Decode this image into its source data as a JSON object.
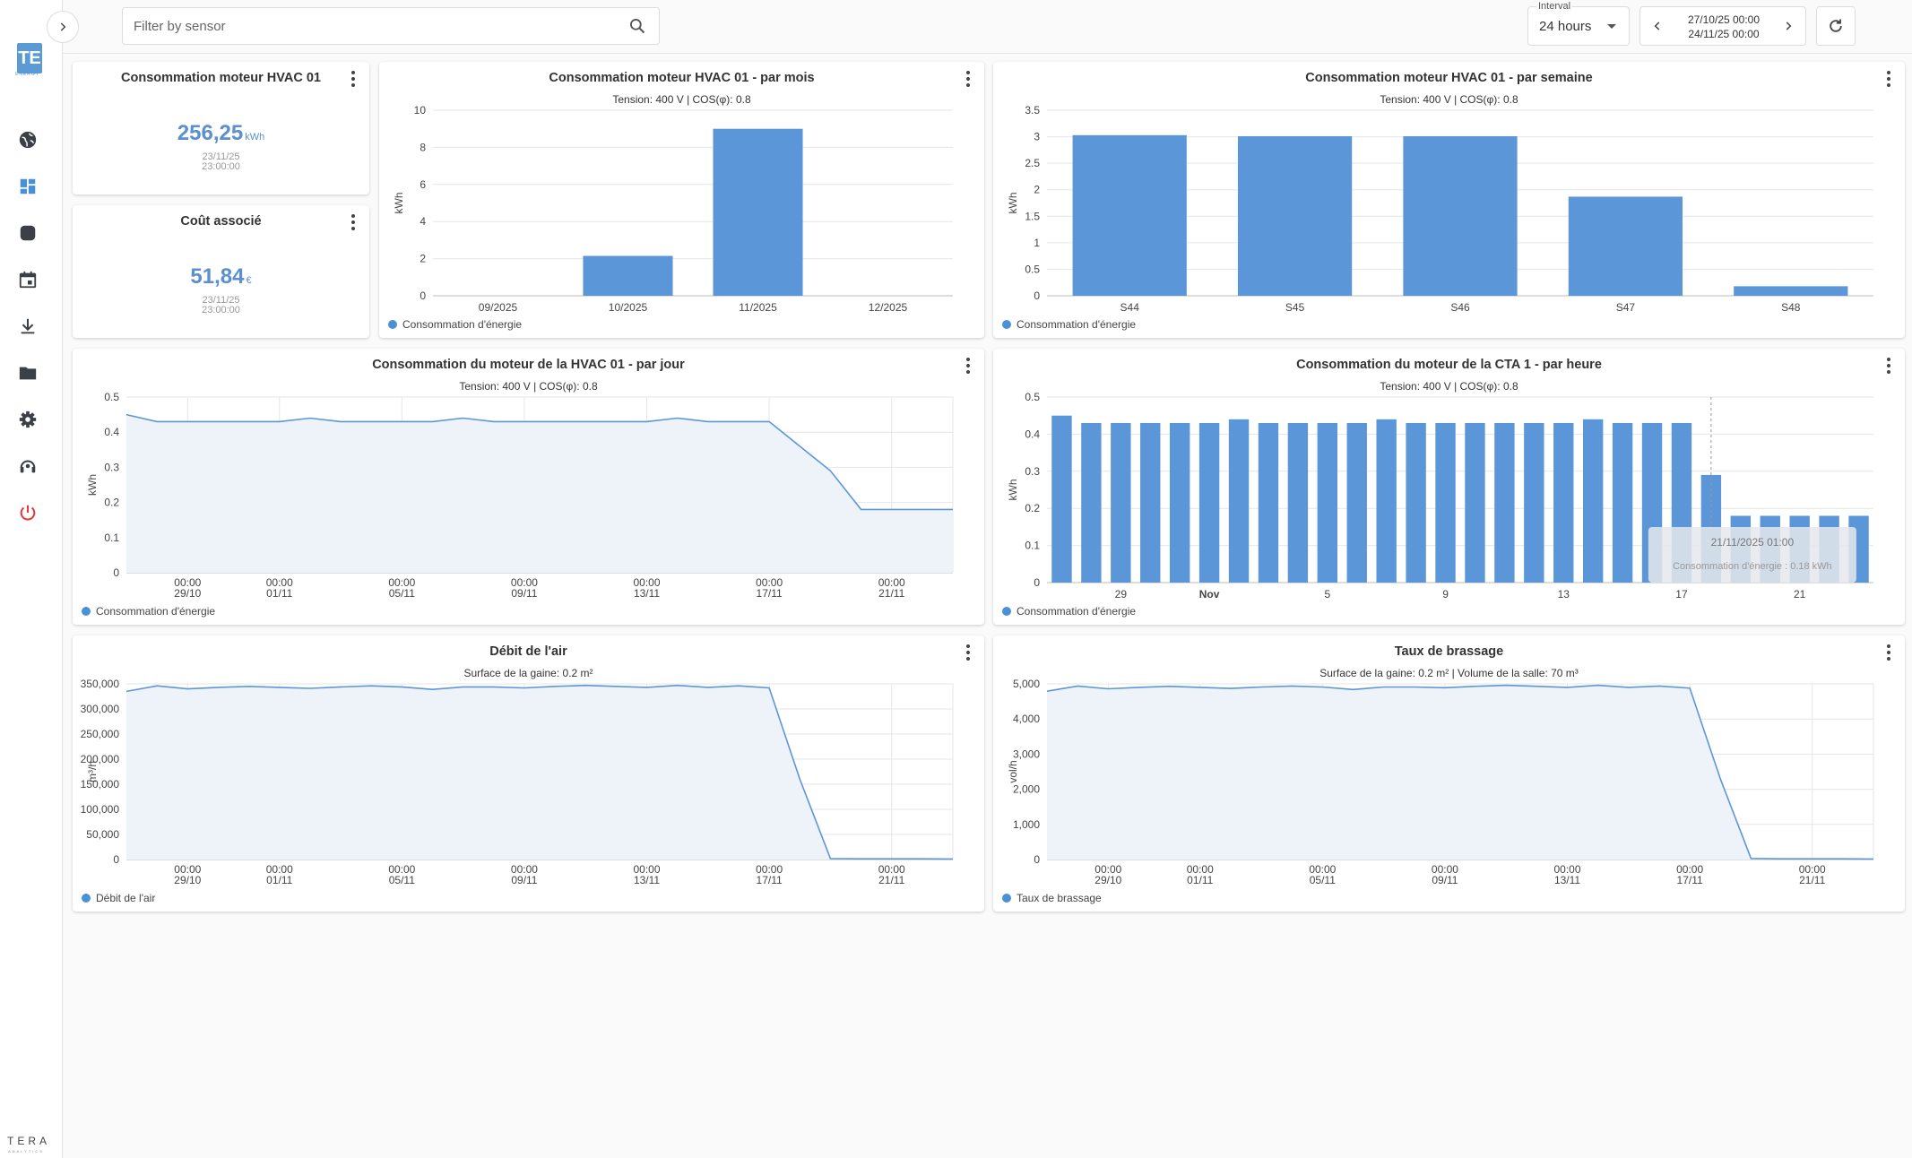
{
  "sidebar": {
    "logo_text": "TE",
    "logo_subtext": "ENERGY",
    "items": [
      {
        "name": "globe-icon"
      },
      {
        "name": "dashboard-icon"
      },
      {
        "name": "device-icon"
      },
      {
        "name": "calendar-icon"
      },
      {
        "name": "download-icon"
      },
      {
        "name": "folder-icon"
      },
      {
        "name": "settings-icon"
      },
      {
        "name": "support-icon"
      },
      {
        "name": "power-icon"
      }
    ],
    "brand": "TERA",
    "brand_sub": "ANALYTICS"
  },
  "topbar": {
    "search_placeholder": "Filter by sensor",
    "interval_label": "Interval",
    "interval_value": "24 hours",
    "range_start": "27/10/25 00:00",
    "range_end": "24/11/25 00:00"
  },
  "kpis": [
    {
      "title": "Consommation moteur HVAC 01",
      "value": "256,25",
      "unit": "kWh",
      "date": "23/11/25",
      "time": "23:00:00"
    },
    {
      "title": "Coût associé",
      "value": "51,84",
      "unit": "€",
      "date": "23/11/25",
      "time": "23:00:00"
    }
  ],
  "colors": {
    "bar": "#5b97d8",
    "line": "#5b97d8",
    "area": "#eef3fa",
    "accent": "#5b8fd0",
    "power": "#e53935"
  },
  "chart_data": [
    {
      "id": "monthly",
      "type": "bar",
      "title": "Consommation moteur HVAC 01 - par mois",
      "subtitle": "Tension: 400 V | COS(φ): 0.8",
      "ylabel": "kWh",
      "ylim": [
        0,
        10
      ],
      "yticks": [
        "0",
        "2",
        "4",
        "6",
        "8",
        "10"
      ],
      "categories": [
        "09/2025",
        "10/2025",
        "11/2025",
        "12/2025"
      ],
      "series": [
        {
          "name": "Consommation d'énergie",
          "values": [
            0,
            2.15,
            9.0,
            0
          ]
        }
      ]
    },
    {
      "id": "weekly",
      "type": "bar",
      "title": "Consommation moteur HVAC 01 - par semaine",
      "subtitle": "Tension: 400 V | COS(φ): 0.8",
      "ylabel": "kWh",
      "ylim": [
        0,
        3.5
      ],
      "yticks": [
        "0",
        "0.5",
        "1",
        "1.5",
        "2",
        "2.5",
        "3",
        "3.5"
      ],
      "categories": [
        "S44",
        "S45",
        "S46",
        "S47",
        "S48"
      ],
      "series": [
        {
          "name": "Consommation d'énergie",
          "values": [
            3.03,
            3.01,
            3.01,
            1.87,
            0.18
          ]
        }
      ]
    },
    {
      "id": "daily",
      "type": "area",
      "title": "Consommation du moteur de la HVAC 01 - par jour",
      "subtitle": "Tension: 400 V | COS(φ): 0.8",
      "ylabel": "kWh",
      "ylim": [
        0,
        0.5
      ],
      "yticks": [
        "0",
        "0.1",
        "0.2",
        "0.3",
        "0.4",
        "0.5"
      ],
      "xticks": [
        "00:00|29/10",
        "00:00|01/11",
        "00:00|05/11",
        "00:00|09/11",
        "00:00|13/11",
        "00:00|17/11",
        "00:00|21/11"
      ],
      "x": [
        "27/10",
        "28/10",
        "29/10",
        "30/10",
        "31/10",
        "01/11",
        "02/11",
        "03/11",
        "04/11",
        "05/11",
        "06/11",
        "07/11",
        "08/11",
        "09/11",
        "10/11",
        "11/11",
        "12/11",
        "13/11",
        "14/11",
        "15/11",
        "16/11",
        "17/11",
        "18/11",
        "19/11",
        "20/11",
        "21/11",
        "22/11",
        "23/11"
      ],
      "series": [
        {
          "name": "Consommation d'énergie",
          "values": [
            0.45,
            0.43,
            0.43,
            0.43,
            0.43,
            0.43,
            0.44,
            0.43,
            0.43,
            0.43,
            0.43,
            0.44,
            0.43,
            0.43,
            0.43,
            0.43,
            0.43,
            0.43,
            0.44,
            0.43,
            0.43,
            0.43,
            0.36,
            0.29,
            0.18,
            0.18,
            0.18,
            0.18
          ]
        }
      ]
    },
    {
      "id": "hourly",
      "type": "bar",
      "title": "Consommation du moteur de la CTA 1 - par heure",
      "subtitle": "Tension: 400 V | COS(φ): 0.8",
      "ylabel": "kWh",
      "ylim": [
        0,
        0.5
      ],
      "yticks": [
        "0",
        "0.1",
        "0.2",
        "0.3",
        "0.4",
        "0.5"
      ],
      "xticks": [
        "29",
        "Nov",
        "5",
        "9",
        "13",
        "17",
        "21"
      ],
      "series": [
        {
          "name": "Consommation d'énergie",
          "values": [
            0.45,
            0.43,
            0.43,
            0.43,
            0.43,
            0.43,
            0.44,
            0.43,
            0.43,
            0.43,
            0.43,
            0.44,
            0.43,
            0.43,
            0.43,
            0.43,
            0.43,
            0.43,
            0.44,
            0.43,
            0.43,
            0.43,
            0.29,
            0.18,
            0.18,
            0.18,
            0.18,
            0.18
          ]
        }
      ],
      "tooltip": {
        "title": "21/11/2025 01:00",
        "text": "Consommation d'énergie : 0.18 kWh"
      }
    },
    {
      "id": "airflow",
      "type": "area",
      "title": "Débit de l'air",
      "subtitle": "Surface de la gaine: 0.2 m²",
      "ylabel": "m³/h",
      "ylim": [
        0,
        350000
      ],
      "yticks": [
        "0",
        "50,000",
        "100,000",
        "150,000",
        "200,000",
        "250,000",
        "300,000",
        "350,000"
      ],
      "xticks": [
        "00:00|29/10",
        "00:00|01/11",
        "00:00|05/11",
        "00:00|09/11",
        "00:00|13/11",
        "00:00|17/11",
        "00:00|21/11"
      ],
      "series": [
        {
          "name": "Débit de l'air",
          "values": [
            335000,
            346000,
            340000,
            343000,
            345000,
            343000,
            341000,
            344000,
            346000,
            344000,
            339000,
            344000,
            344000,
            342000,
            345000,
            347000,
            345000,
            343000,
            347000,
            343000,
            346000,
            342000,
            160000,
            2000,
            1500,
            1500,
            1500,
            1000
          ]
        }
      ]
    },
    {
      "id": "brassage",
      "type": "area",
      "title": "Taux de brassage",
      "subtitle": "Surface de la gaine: 0.2 m² | Volume de la salle: 70 m³",
      "ylabel": "vol/h",
      "ylim": [
        0,
        5000
      ],
      "yticks": [
        "0",
        "1,000",
        "2,000",
        "3,000",
        "4,000",
        "5,000"
      ],
      "xticks": [
        "00:00|29/10",
        "00:00|01/11",
        "00:00|05/11",
        "00:00|09/11",
        "00:00|13/11",
        "00:00|17/11",
        "00:00|21/11"
      ],
      "series": [
        {
          "name": "Taux de brassage",
          "values": [
            4790,
            4940,
            4860,
            4900,
            4930,
            4900,
            4870,
            4910,
            4940,
            4910,
            4840,
            4910,
            4910,
            4890,
            4930,
            4960,
            4930,
            4900,
            4960,
            4900,
            4940,
            4880,
            2290,
            30,
            20,
            20,
            20,
            15
          ]
        }
      ]
    }
  ]
}
